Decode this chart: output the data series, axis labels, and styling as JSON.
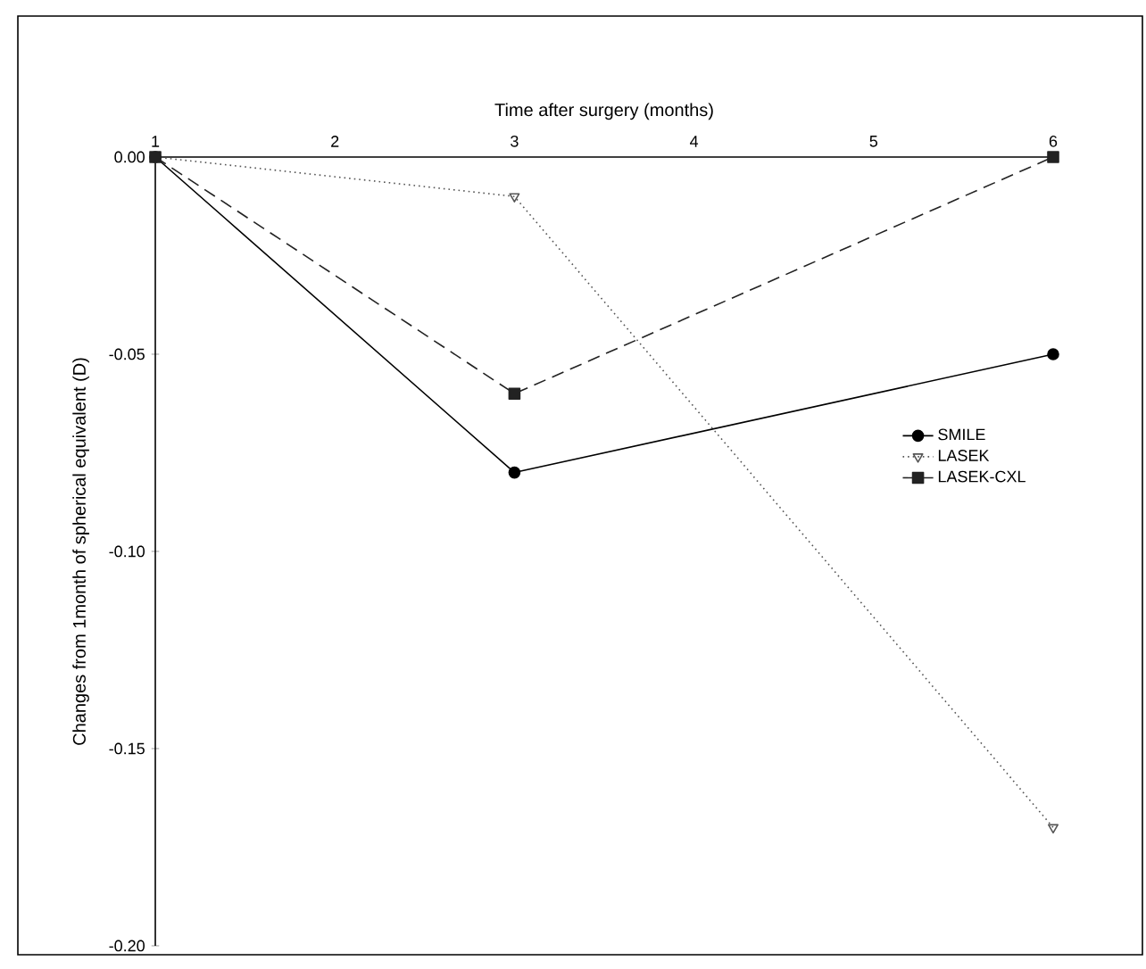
{
  "chart_data": {
    "type": "line",
    "xlabel": "Time after surgery (months)",
    "ylabel": "Changes from 1month of spherical equivalent (D)",
    "xlim": [
      1,
      6
    ],
    "xticks": [
      1,
      2,
      3,
      4,
      5,
      6
    ],
    "ylim": [
      -0.2,
      0
    ],
    "yticks": [
      {
        "value": 0,
        "label": "0.00"
      },
      {
        "value": -0.05,
        "label": "-0.05"
      },
      {
        "value": -0.1,
        "label": "-0.10"
      },
      {
        "value": -0.15,
        "label": "-0.15"
      },
      {
        "value": -0.2,
        "label": "-0.20"
      }
    ],
    "legend": "right",
    "grid": false,
    "series": [
      {
        "name": "SMILE",
        "color": "#000000",
        "x": [
          1,
          3,
          6
        ],
        "values": [
          0,
          -0.08,
          -0.05
        ],
        "marker": "circle",
        "line_style": "solid"
      },
      {
        "name": "LASEK",
        "color": "#555555",
        "x": [
          1,
          3,
          6
        ],
        "values": [
          0,
          -0.01,
          -0.17
        ],
        "marker": "triangle",
        "line_style": "dotted"
      },
      {
        "name": "LASEK-CXL",
        "color": "#222222",
        "x": [
          1,
          3,
          6
        ],
        "values": [
          0,
          -0.06,
          0
        ],
        "marker": "square",
        "line_style": "dashed"
      }
    ]
  }
}
